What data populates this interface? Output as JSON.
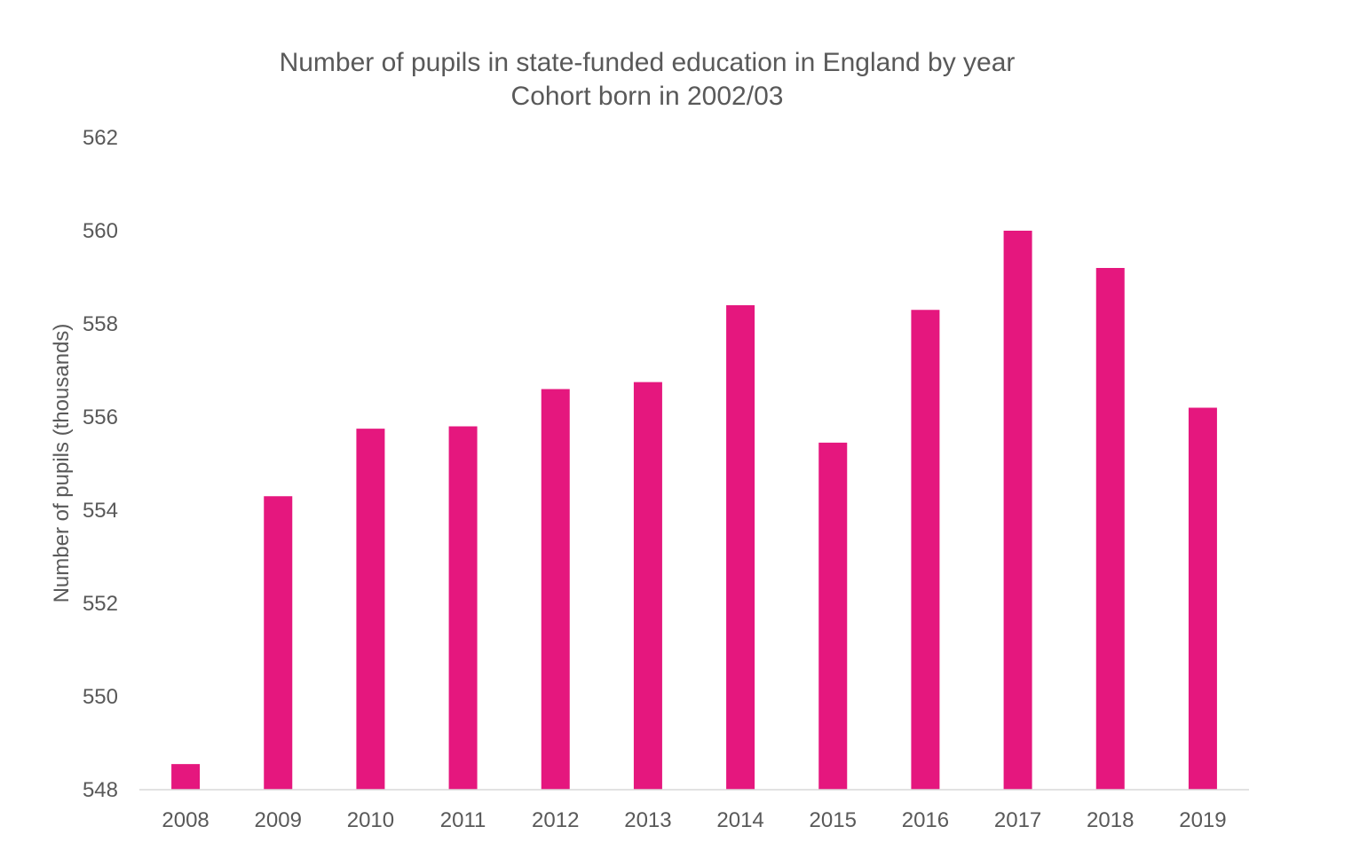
{
  "chart_data": {
    "type": "bar",
    "title": "Number of pupils in state-funded education in England by year",
    "subtitle": "Cohort born in 2002/03",
    "xlabel": "",
    "ylabel": "Number of pupils (thousands)",
    "categories": [
      "2008",
      "2009",
      "2010",
      "2011",
      "2012",
      "2013",
      "2014",
      "2015",
      "2016",
      "2017",
      "2018",
      "2019"
    ],
    "values": [
      548.55,
      554.3,
      555.75,
      555.8,
      556.6,
      556.75,
      558.4,
      555.45,
      558.3,
      560.0,
      559.2,
      556.2
    ],
    "ylim": [
      548,
      562
    ],
    "yticks": [
      548,
      550,
      552,
      554,
      556,
      558,
      560,
      562
    ],
    "grid": false,
    "legend": "none",
    "bar_color": "#E5177E",
    "axis_color": "#D9D9D9",
    "text_color": "#595959"
  }
}
